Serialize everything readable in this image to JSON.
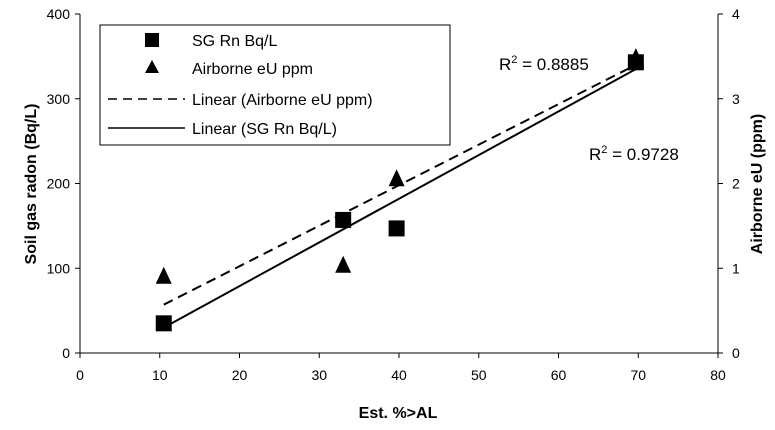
{
  "chart_data": {
    "type": "scatter",
    "xlabel": "Est. %>AL",
    "ylabel": "Soil gas radon (Bq/L)",
    "y2label": "Airborne eU (ppm)",
    "xlim": [
      0,
      80
    ],
    "ylim": [
      0,
      400
    ],
    "y2lim": [
      0,
      4
    ],
    "xticks": [
      "0",
      "10",
      "20",
      "30",
      "40",
      "50",
      "60",
      "70",
      "80"
    ],
    "yticks": [
      "0",
      "100",
      "200",
      "300",
      "400"
    ],
    "y2ticks": [
      "0",
      "1",
      "2",
      "3",
      "4"
    ],
    "legend": "top-left",
    "series": [
      {
        "name": "SG Rn Bq/L",
        "marker": "square",
        "axis": "left",
        "x": [
          10.5,
          33,
          39.7,
          69.7
        ],
        "y": [
          35,
          157,
          147,
          343
        ]
      },
      {
        "name": "Airborne eU ppm",
        "marker": "triangle",
        "axis": "right",
        "x": [
          10.5,
          33,
          39.7,
          69.7
        ],
        "y": [
          0.9,
          1.03,
          2.05,
          3.48
        ]
      }
    ],
    "trendlines": [
      {
        "name": "Linear (Airborne eU ppm)",
        "style": "dashed",
        "axis": "right",
        "x": [
          10.5,
          69.7
        ],
        "y": [
          0.57,
          3.4
        ]
      },
      {
        "name": "Linear (SG Rn Bq/L)",
        "style": "solid",
        "axis": "left",
        "x": [
          10.5,
          69.7
        ],
        "y": [
          30,
          335
        ]
      }
    ],
    "annotations": [
      {
        "label": "R",
        "sup": "2",
        "value": " = 0.8885"
      },
      {
        "label": "R",
        "sup": "2",
        "value": " = 0.9728"
      }
    ]
  }
}
